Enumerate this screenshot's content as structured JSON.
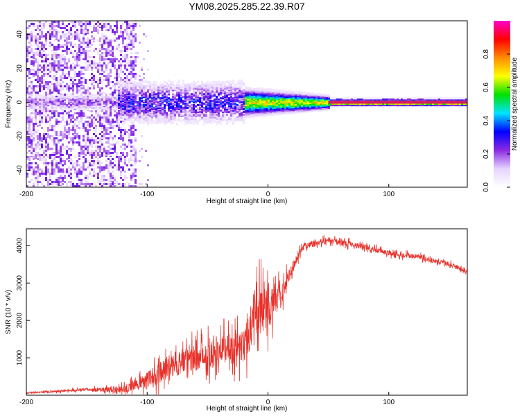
{
  "title": "YM08.2025.285.22.39.R07",
  "colors": {
    "snr_line": "#e8312a",
    "frame": "#000000",
    "zero_band": "#d81b60"
  },
  "chart_data": [
    {
      "type": "heatmap",
      "title": "YM08.2025.285.22.39.R07",
      "xlabel": "Height of straight line (km)",
      "ylabel": "Frequency (Hz)",
      "xlim": [
        -200,
        165
      ],
      "ylim": [
        -50,
        48
      ],
      "xticks": [
        -200,
        -100,
        0,
        100
      ],
      "yticks": [
        -40,
        -20,
        0,
        20,
        40
      ],
      "colorbar": {
        "label": "Normalized spectral amplitude",
        "range": [
          0,
          1
        ],
        "ticks": [
          0.0,
          0.2,
          0.4,
          0.6,
          0.8
        ],
        "tick_labels": [
          "0.0",
          "0.2",
          "0.4",
          "0.6",
          "0.8"
        ],
        "colormap": [
          "#ffffff",
          "#e6d3ff",
          "#8a2be2",
          "#0000ff",
          "#00e5ff",
          "#00e000",
          "#ffff00",
          "#ff8c00",
          "#ff0000",
          "#ff00cc"
        ]
      },
      "regions": [
        {
          "x_range": [
            -200,
            -110
          ],
          "description": "broadband noise, amplitude ~0.1-0.25"
        },
        {
          "x_range": [
            -125,
            -20
          ],
          "freq_spread_hz": 10,
          "amplitude": 0.3
        },
        {
          "x_range": [
            -20,
            50
          ],
          "freq_spread_hz": 3,
          "amplitude": 0.7
        },
        {
          "x_range": [
            50,
            165
          ],
          "freq_spread_hz": 1.5,
          "amplitude": 0.95
        }
      ]
    },
    {
      "type": "line",
      "title": "",
      "xlabel": "Height of straight line (km)",
      "ylabel": "SNR (10 * v/v)",
      "xlim": [
        -200,
        165
      ],
      "ylim": [
        0,
        4450
      ],
      "xticks": [
        -200,
        -100,
        0,
        100
      ],
      "yticks": [
        1000,
        2000,
        3000,
        4000
      ],
      "series": [
        {
          "name": "SNR",
          "x": [
            -200,
            -150,
            -120,
            -100,
            -80,
            -60,
            -40,
            -20,
            -10,
            0,
            10,
            20,
            30,
            50,
            75,
            100,
            125,
            150,
            165
          ],
          "y": [
            60,
            150,
            160,
            400,
            800,
            1000,
            1200,
            1300,
            2300,
            2400,
            2600,
            3400,
            4000,
            4150,
            4000,
            3800,
            3700,
            3500,
            3300
          ],
          "noise": [
            40,
            80,
            200,
            500,
            700,
            800,
            900,
            1000,
            1600,
            1500,
            700,
            300,
            220,
            180,
            160,
            150,
            150,
            150,
            150
          ]
        }
      ]
    }
  ]
}
